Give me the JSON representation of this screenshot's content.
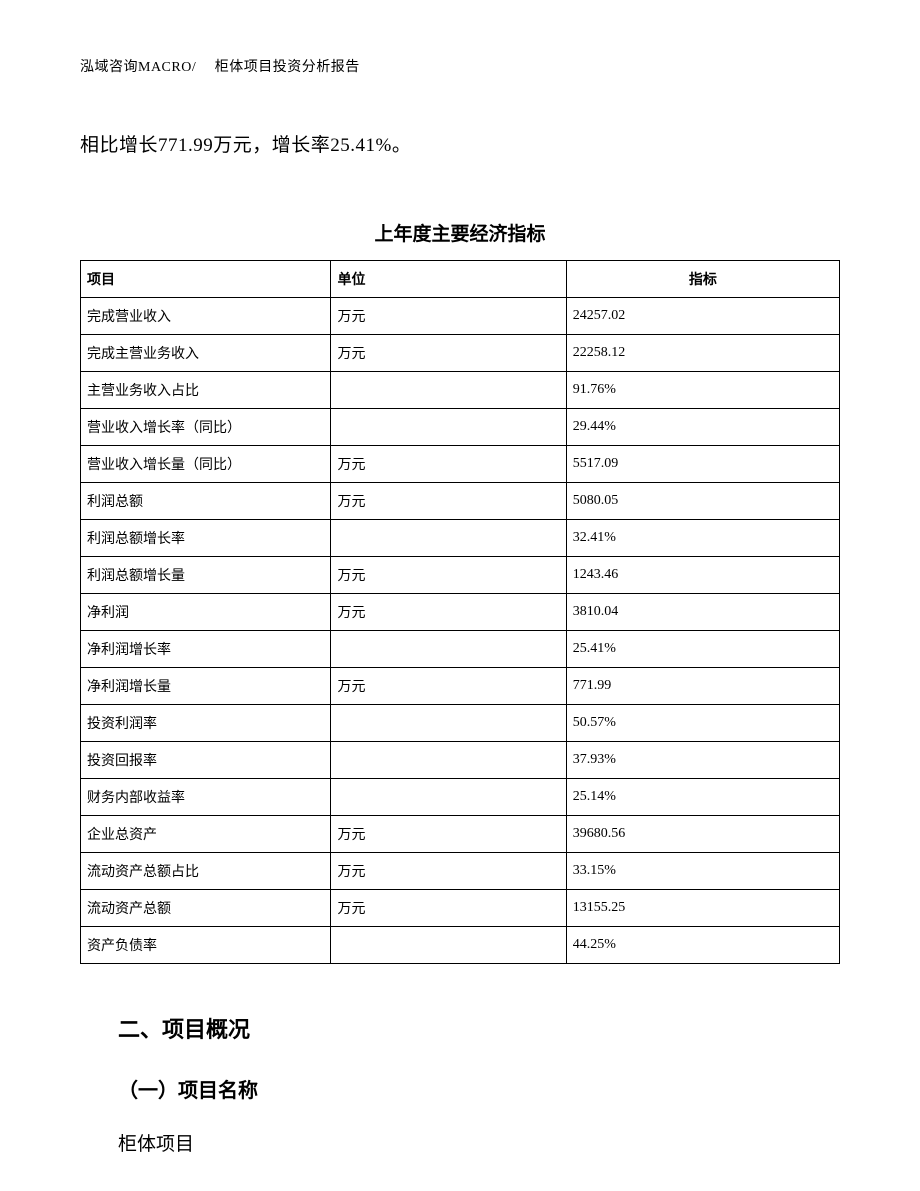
{
  "header": "泓域咨询MACRO/　 柜体项目投资分析报告",
  "intro": "相比增长771.99万元，增长率25.41%。",
  "table": {
    "title": "上年度主要经济指标",
    "columns": [
      "项目",
      "单位",
      "指标"
    ],
    "rows": [
      {
        "item": "完成营业收入",
        "unit": "万元",
        "value": "24257.02"
      },
      {
        "item": "完成主营业务收入",
        "unit": "万元",
        "value": "22258.12"
      },
      {
        "item": "主营业务收入占比",
        "unit": "",
        "value": "91.76%"
      },
      {
        "item": "营业收入增长率（同比）",
        "unit": "",
        "value": "29.44%"
      },
      {
        "item": "营业收入增长量（同比）",
        "unit": "万元",
        "value": "5517.09"
      },
      {
        "item": "利润总额",
        "unit": "万元",
        "value": "5080.05"
      },
      {
        "item": "利润总额增长率",
        "unit": "",
        "value": "32.41%"
      },
      {
        "item": "利润总额增长量",
        "unit": "万元",
        "value": "1243.46"
      },
      {
        "item": "净利润",
        "unit": "万元",
        "value": "3810.04"
      },
      {
        "item": "净利润增长率",
        "unit": "",
        "value": "25.41%"
      },
      {
        "item": "净利润增长量",
        "unit": "万元",
        "value": "771.99"
      },
      {
        "item": "投资利润率",
        "unit": "",
        "value": "50.57%"
      },
      {
        "item": "投资回报率",
        "unit": "",
        "value": "37.93%"
      },
      {
        "item": "财务内部收益率",
        "unit": "",
        "value": "25.14%"
      },
      {
        "item": "企业总资产",
        "unit": "万元",
        "value": "39680.56"
      },
      {
        "item": "流动资产总额占比",
        "unit": "万元",
        "value": "33.15%"
      },
      {
        "item": "流动资产总额",
        "unit": "万元",
        "value": "13155.25"
      },
      {
        "item": "资产负债率",
        "unit": "",
        "value": "44.25%"
      }
    ]
  },
  "section": {
    "heading": "二、项目概况",
    "subheading": "（一）项目名称",
    "body": "柜体项目"
  }
}
